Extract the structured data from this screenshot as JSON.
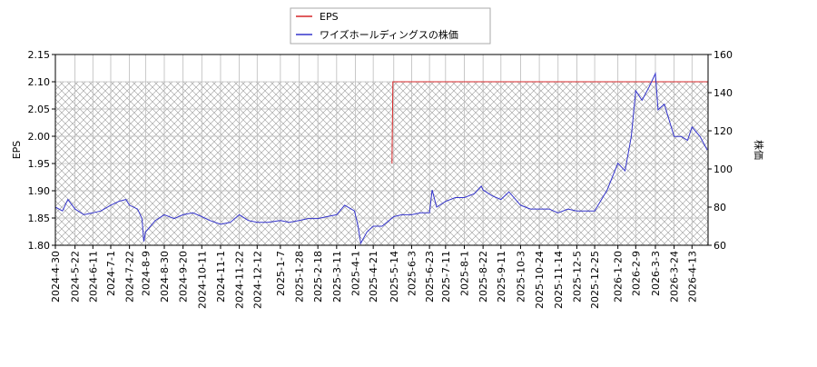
{
  "chart_data": {
    "type": "line",
    "ylabel": "EPS",
    "y2label": "株価",
    "xlim": [
      "2024-4-30",
      "2026-5-1"
    ],
    "xticks": [
      "2024-4-30",
      "2024-5-22",
      "2024-6-11",
      "2024-7-1",
      "2024-7-22",
      "2024-8-9",
      "2024-8-30",
      "2024-9-20",
      "2024-10-11",
      "2024-11-1",
      "2024-11-22",
      "2024-12-12",
      "2025-1-7",
      "2025-1-28",
      "2025-2-18",
      "2025-3-11",
      "2025-4-1",
      "2025-4-21",
      "2025-5-14",
      "2025-6-3",
      "2025-6-23",
      "2025-7-11",
      "2025-8-1",
      "2025-8-22",
      "2025-9-11",
      "2025-10-3",
      "2025-10-24",
      "2025-11-14",
      "2025-12-5",
      "2025-12-25",
      "2026-1-20",
      "2026-2-9",
      "2026-3-3",
      "2026-3-24",
      "2026-4-13"
    ],
    "ylim": [
      1.8,
      2.15
    ],
    "yticks": [
      {
        "value": 1.8,
        "label": "1.80"
      },
      {
        "value": 1.85,
        "label": "1.85"
      },
      {
        "value": 1.9,
        "label": "1.90"
      },
      {
        "value": 1.95,
        "label": "1.95"
      },
      {
        "value": 2.0,
        "label": "2.00"
      },
      {
        "value": 2.05,
        "label": "2.05"
      },
      {
        "value": 2.1,
        "label": "2.10"
      },
      {
        "value": 2.15,
        "label": "2.15"
      }
    ],
    "y2lim": [
      60,
      160
    ],
    "y2ticks": [
      60,
      80,
      100,
      120,
      140,
      160
    ],
    "grid": true,
    "legend": "upper center",
    "series": [
      {
        "name": "EPS",
        "color": "#d62728",
        "x": [
          "2025-5-12",
          "2025-5-13",
          "2026-5-1"
        ],
        "values": [
          1.95,
          2.1,
          2.1
        ]
      },
      {
        "name": "ワイズホールディングスの株価",
        "color": "#3333cc",
        "axis": "y2",
        "x": [
          "2024-4-30",
          "2024-5-8",
          "2024-5-14",
          "2024-5-22",
          "2024-6-1",
          "2024-6-11",
          "2024-6-20",
          "2024-7-1",
          "2024-7-10",
          "2024-7-18",
          "2024-7-22",
          "2024-7-31",
          "2024-8-5",
          "2024-8-7",
          "2024-8-9",
          "2024-8-20",
          "2024-8-30",
          "2024-9-10",
          "2024-9-20",
          "2024-10-1",
          "2024-10-11",
          "2024-10-20",
          "2024-11-1",
          "2024-11-12",
          "2024-11-22",
          "2024-12-2",
          "2024-12-12",
          "2024-12-24",
          "2025-1-7",
          "2025-1-17",
          "2025-1-28",
          "2025-2-7",
          "2025-2-18",
          "2025-2-28",
          "2025-3-11",
          "2025-3-20",
          "2025-3-31",
          "2025-4-4",
          "2025-4-7",
          "2025-4-14",
          "2025-4-21",
          "2025-5-1",
          "2025-5-14",
          "2025-5-23",
          "2025-6-3",
          "2025-6-13",
          "2025-6-23",
          "2025-6-26",
          "2025-7-1",
          "2025-7-11",
          "2025-7-22",
          "2025-8-1",
          "2025-8-12",
          "2025-8-20",
          "2025-8-22",
          "2025-9-1",
          "2025-9-11",
          "2025-9-20",
          "2025-10-3",
          "2025-10-14",
          "2025-10-24",
          "2025-11-4",
          "2025-11-14",
          "2025-11-25",
          "2025-12-5",
          "2025-12-15",
          "2025-12-25",
          "2026-1-8",
          "2026-1-20",
          "2026-1-28",
          "2026-2-4",
          "2026-2-9",
          "2026-2-16",
          "2026-2-24",
          "2026-3-3",
          "2026-3-6",
          "2026-3-13",
          "2026-3-24",
          "2026-4-1",
          "2026-4-8",
          "2026-4-13",
          "2026-4-22",
          "2026-4-30"
        ],
        "values": [
          80,
          78,
          84,
          79,
          76,
          77,
          78,
          81,
          83,
          84,
          81,
          79,
          74,
          62,
          67,
          73,
          76,
          74,
          76,
          77,
          75,
          73,
          71,
          72,
          76,
          73,
          72,
          72,
          73,
          72,
          73,
          74,
          74,
          75,
          76,
          81,
          78,
          70,
          61,
          67,
          70,
          70,
          75,
          76,
          76,
          77,
          77,
          89,
          80,
          83,
          85,
          85,
          87,
          91,
          89,
          86,
          84,
          88,
          81,
          79,
          79,
          79,
          77,
          79,
          78,
          78,
          78,
          89,
          103,
          99,
          117,
          141,
          136,
          143,
          150,
          131,
          134,
          117,
          117,
          115,
          122,
          117,
          110
        ]
      }
    ]
  }
}
